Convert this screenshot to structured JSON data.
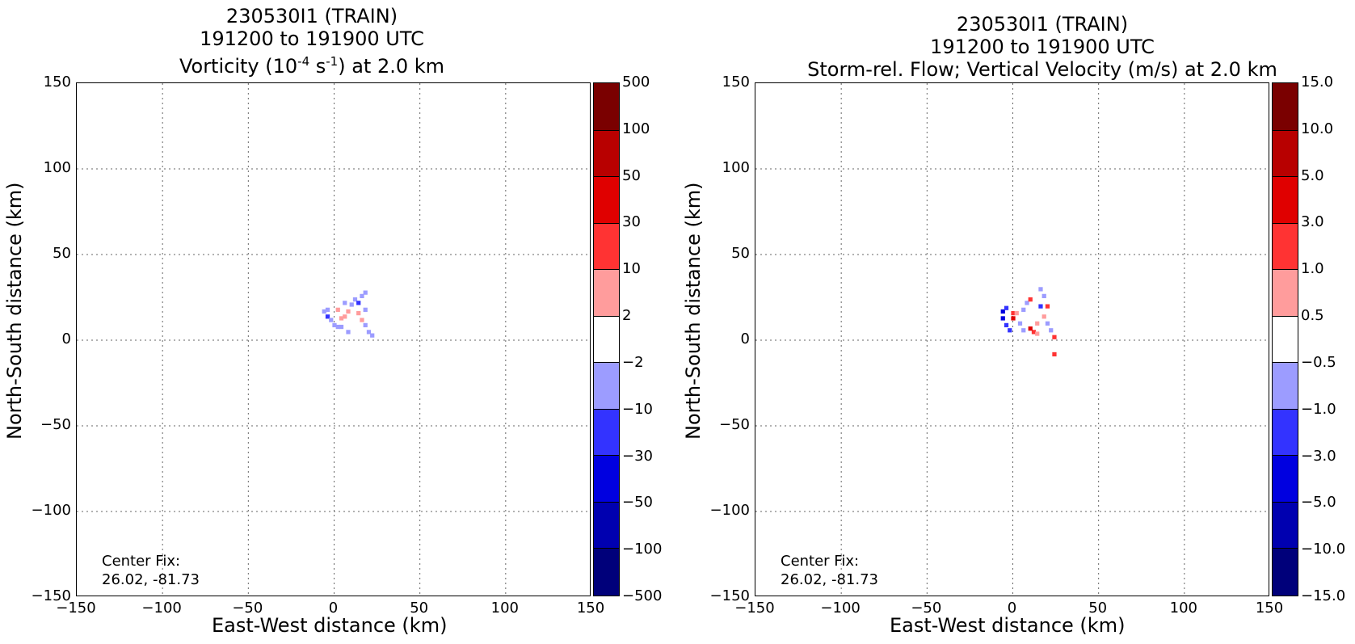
{
  "chart_data": [
    {
      "type": "heatmap",
      "title_line1": "230530I1 (TRAIN)",
      "title_line2": "191200 to 191900 UTC",
      "title_line3_pre": "Vorticity (10",
      "title_line3_sup1": "-4",
      "title_line3_mid": " s",
      "title_line3_sup2": "-1",
      "title_line3_post": ") at 2.0 km",
      "xlabel": "East-West distance (km)",
      "ylabel": "North-South distance (km)",
      "xlim": [
        -150,
        150
      ],
      "ylim": [
        -150,
        150
      ],
      "x_ticks": [
        "−150",
        "−100",
        "−50",
        "0",
        "50",
        "100",
        "150"
      ],
      "y_ticks": [
        "150",
        "100",
        "50",
        "0",
        "−50",
        "−100",
        "−150"
      ],
      "grid": true,
      "colorbar_levels": [
        "500",
        "100",
        "50",
        "30",
        "10",
        "2",
        "−2",
        "−10",
        "−30",
        "−50",
        "−100",
        "−500"
      ],
      "colorbar_colors": [
        "#7a0000",
        "#b80000",
        "#e00000",
        "#ff3333",
        "#ff9c9c",
        "#ffffff",
        "#9c9cff",
        "#3333ff",
        "#0000e0",
        "#0000b0",
        "#00007a"
      ],
      "annotation_line1": "Center Fix:",
      "annotation_line2": "26.02, -81.73",
      "cells": [
        {
          "x": -6,
          "y": 17,
          "c": "#9c9cff"
        },
        {
          "x": -4,
          "y": 14,
          "c": "#3333ff"
        },
        {
          "x": -2,
          "y": 12,
          "c": "#9c9cff"
        },
        {
          "x": 0,
          "y": 9,
          "c": "#9c9cff"
        },
        {
          "x": 2,
          "y": 8,
          "c": "#9c9cff"
        },
        {
          "x": 4,
          "y": 13,
          "c": "#ff9c9c"
        },
        {
          "x": 6,
          "y": 14,
          "c": "#ff9c9c"
        },
        {
          "x": 8,
          "y": 17,
          "c": "#ff9c9c"
        },
        {
          "x": 10,
          "y": 21,
          "c": "#9c9cff"
        },
        {
          "x": 12,
          "y": 24,
          "c": "#9c9cff"
        },
        {
          "x": 14,
          "y": 22,
          "c": "#3333ff"
        },
        {
          "x": 16,
          "y": 26,
          "c": "#9c9cff"
        },
        {
          "x": 18,
          "y": 28,
          "c": "#9c9cff"
        },
        {
          "x": 2,
          "y": 18,
          "c": "#ff9c9c"
        },
        {
          "x": 14,
          "y": 16,
          "c": "#ff9c9c"
        },
        {
          "x": 16,
          "y": 12,
          "c": "#ff9c9c"
        },
        {
          "x": 18,
          "y": 18,
          "c": "#9c9cff"
        },
        {
          "x": 18,
          "y": 9,
          "c": "#9c9cff"
        },
        {
          "x": 20,
          "y": 5,
          "c": "#9c9cff"
        },
        {
          "x": 22,
          "y": 3,
          "c": "#9c9cff"
        },
        {
          "x": 8,
          "y": 5,
          "c": "#9c9cff"
        },
        {
          "x": 6,
          "y": 22,
          "c": "#9c9cff"
        },
        {
          "x": 4,
          "y": 8,
          "c": "#9c9cff"
        },
        {
          "x": -4,
          "y": 18,
          "c": "#9c9cff"
        }
      ]
    },
    {
      "type": "heatmap",
      "title_line1": "230530I1 (TRAIN)",
      "title_line2": "191200 to 191900 UTC",
      "title_line3": "Storm-rel. Flow; Vertical Velocity (m/s) at 2.0 km",
      "xlabel": "East-West distance (km)",
      "ylabel": "North-South distance (km)",
      "xlim": [
        -150,
        150
      ],
      "ylim": [
        -150,
        150
      ],
      "x_ticks": [
        "−150",
        "−100",
        "−50",
        "0",
        "50",
        "100",
        "150"
      ],
      "y_ticks": [
        "150",
        "100",
        "50",
        "0",
        "−50",
        "−100",
        "−150"
      ],
      "grid": true,
      "colorbar_levels": [
        "15.0",
        "10.0",
        "5.0",
        "3.0",
        "1.0",
        "0.5",
        "−0.5",
        "−1.0",
        "−3.0",
        "−5.0",
        "−10.0",
        "−15.0"
      ],
      "colorbar_colors": [
        "#7a0000",
        "#b80000",
        "#e00000",
        "#ff3333",
        "#ff9c9c",
        "#ffffff",
        "#9c9cff",
        "#3333ff",
        "#0000e0",
        "#0000b0",
        "#00007a"
      ],
      "annotation_line1": "Center Fix:",
      "annotation_line2": "26.02, -81.73",
      "cells": [
        {
          "x": -6,
          "y": 17,
          "c": "#0000e0"
        },
        {
          "x": -6,
          "y": 13,
          "c": "#0000e0"
        },
        {
          "x": -4,
          "y": 9,
          "c": "#3333ff"
        },
        {
          "x": -4,
          "y": 19,
          "c": "#3333ff"
        },
        {
          "x": -2,
          "y": 6,
          "c": "#3333ff"
        },
        {
          "x": 0,
          "y": 16,
          "c": "#ff3333"
        },
        {
          "x": 0,
          "y": 13,
          "c": "#e00000"
        },
        {
          "x": 2,
          "y": 16,
          "c": "#ff9c9c"
        },
        {
          "x": 4,
          "y": 10,
          "c": "#9c9cff"
        },
        {
          "x": 6,
          "y": 6,
          "c": "#9c9cff"
        },
        {
          "x": 8,
          "y": 22,
          "c": "#9c9cff"
        },
        {
          "x": 10,
          "y": 24,
          "c": "#ff3333"
        },
        {
          "x": 12,
          "y": 5,
          "c": "#ff3333"
        },
        {
          "x": 10,
          "y": 7,
          "c": "#e00000"
        },
        {
          "x": 14,
          "y": 4,
          "c": "#ff9c9c"
        },
        {
          "x": 16,
          "y": 30,
          "c": "#9c9cff"
        },
        {
          "x": 18,
          "y": 26,
          "c": "#9c9cff"
        },
        {
          "x": 20,
          "y": 20,
          "c": "#ff3333"
        },
        {
          "x": 18,
          "y": 14,
          "c": "#ff9c9c"
        },
        {
          "x": 20,
          "y": 10,
          "c": "#9c9cff"
        },
        {
          "x": 22,
          "y": 6,
          "c": "#9c9cff"
        },
        {
          "x": 24,
          "y": 2,
          "c": "#ff3333"
        },
        {
          "x": 24,
          "y": -8,
          "c": "#ff3333"
        },
        {
          "x": 16,
          "y": 20,
          "c": "#3333ff"
        },
        {
          "x": 6,
          "y": 18,
          "c": "#9c9cff"
        },
        {
          "x": 14,
          "y": 10,
          "c": "#ff9c9c"
        }
      ]
    }
  ]
}
